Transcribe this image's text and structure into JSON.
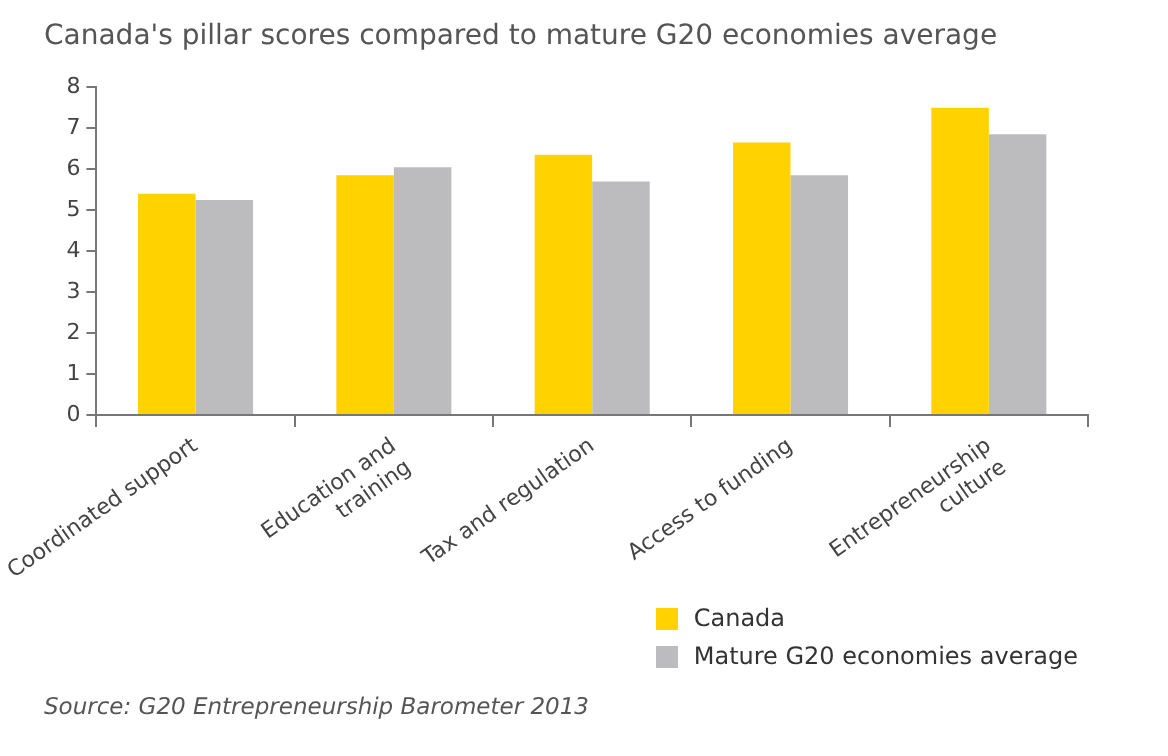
{
  "chart_data": {
    "type": "bar",
    "title": "Canada's pillar scores compared to mature G20 economies average",
    "categories": [
      "Coordinated support",
      "Education and training",
      "Tax and regulation",
      "Access to funding",
      "Entrepreneurship culture"
    ],
    "series": [
      {
        "name": "Canada",
        "color": "#ffd200",
        "values": [
          5.4,
          5.85,
          6.35,
          6.65,
          7.5
        ]
      },
      {
        "name": "Mature G20 economies average",
        "color": "#bcbcbe",
        "values": [
          5.25,
          6.05,
          5.7,
          5.85,
          6.85
        ]
      }
    ],
    "ylim": [
      0,
      8
    ],
    "yticks": [
      0,
      1,
      2,
      3,
      4,
      5,
      6,
      7,
      8
    ],
    "grid": false,
    "legend": "bottom right",
    "annotations": [
      "Source: G20 Entrepreneurship Barometer 2013"
    ]
  }
}
